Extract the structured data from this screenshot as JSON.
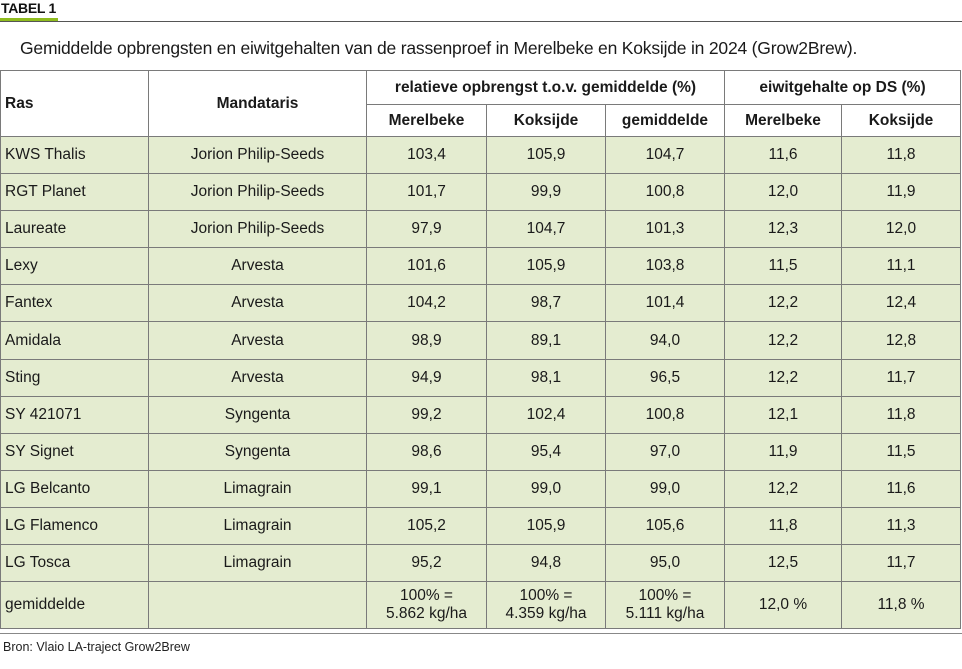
{
  "label": "TABEL 1",
  "caption": "Gemiddelde opbrengsten en eiwitgehalten van de rassenproef in Merelbeke en Koksijde in 2024 (Grow2Brew).",
  "header": {
    "ras": "Ras",
    "mandataris": "Mandataris",
    "group_yield": "relatieve opbrengst t.o.v. gemiddelde (%)",
    "group_protein": "eiwitgehalte op DS (%)",
    "merelbeke": "Merelbeke",
    "koksijde": "Koksijde",
    "gemiddelde": "gemiddelde",
    "merelbeke2": "Merelbeke",
    "koksijde2": "Koksijde"
  },
  "rows": [
    {
      "ras": "KWS Thalis",
      "mandataris": "Jorion Philip-Seeds",
      "y_mer": "103,4",
      "y_kok": "105,9",
      "y_gem": "104,7",
      "p_mer": "11,6",
      "p_kok": "11,8"
    },
    {
      "ras": "RGT Planet",
      "mandataris": "Jorion Philip-Seeds",
      "y_mer": "101,7",
      "y_kok": "99,9",
      "y_gem": "100,8",
      "p_mer": "12,0",
      "p_kok": "11,9"
    },
    {
      "ras": "Laureate",
      "mandataris": "Jorion Philip-Seeds",
      "y_mer": "97,9",
      "y_kok": "104,7",
      "y_gem": "101,3",
      "p_mer": "12,3",
      "p_kok": "12,0"
    },
    {
      "ras": "Lexy",
      "mandataris": "Arvesta",
      "y_mer": "101,6",
      "y_kok": "105,9",
      "y_gem": "103,8",
      "p_mer": "11,5",
      "p_kok": "11,1"
    },
    {
      "ras": "Fantex",
      "mandataris": "Arvesta",
      "y_mer": "104,2",
      "y_kok": "98,7",
      "y_gem": "101,4",
      "p_mer": "12,2",
      "p_kok": "12,4"
    },
    {
      "ras": "Amidala",
      "mandataris": "Arvesta",
      "y_mer": "98,9",
      "y_kok": "89,1",
      "y_gem": "94,0",
      "p_mer": "12,2",
      "p_kok": "12,8"
    },
    {
      "ras": "Sting",
      "mandataris": "Arvesta",
      "y_mer": "94,9",
      "y_kok": "98,1",
      "y_gem": "96,5",
      "p_mer": "12,2",
      "p_kok": "11,7"
    },
    {
      "ras": "SY 421071",
      "mandataris": "Syngenta",
      "y_mer": "99,2",
      "y_kok": "102,4",
      "y_gem": "100,8",
      "p_mer": "12,1",
      "p_kok": "11,8"
    },
    {
      "ras": "SY Signet",
      "mandataris": "Syngenta",
      "y_mer": "98,6",
      "y_kok": "95,4",
      "y_gem": "97,0",
      "p_mer": "11,9",
      "p_kok": "11,5"
    },
    {
      "ras": "LG Belcanto",
      "mandataris": "Limagrain",
      "y_mer": "99,1",
      "y_kok": "99,0",
      "y_gem": "99,0",
      "p_mer": "12,2",
      "p_kok": "11,6"
    },
    {
      "ras": "LG Flamenco",
      "mandataris": "Limagrain",
      "y_mer": "105,2",
      "y_kok": "105,9",
      "y_gem": "105,6",
      "p_mer": "11,8",
      "p_kok": "11,3"
    },
    {
      "ras": "LG Tosca",
      "mandataris": "Limagrain",
      "y_mer": "95,2",
      "y_kok": "94,8",
      "y_gem": "95,0",
      "p_mer": "12,5",
      "p_kok": "11,7"
    }
  ],
  "average_row": {
    "ras": "gemiddelde",
    "mandataris": "",
    "y_mer_1": "100% =",
    "y_mer_2": "5.862 kg/ha",
    "y_kok_1": "100% =",
    "y_kok_2": "4.359 kg/ha",
    "y_gem_1": "100% =",
    "y_gem_2": "5.111 kg/ha",
    "p_mer": "12,0 %",
    "p_kok": "11,8 %"
  },
  "source": "Bron: Vlaio LA-traject Grow2Brew",
  "colors": {
    "accent": "#8fbc1e",
    "row_fill": "#e4ecd0"
  }
}
